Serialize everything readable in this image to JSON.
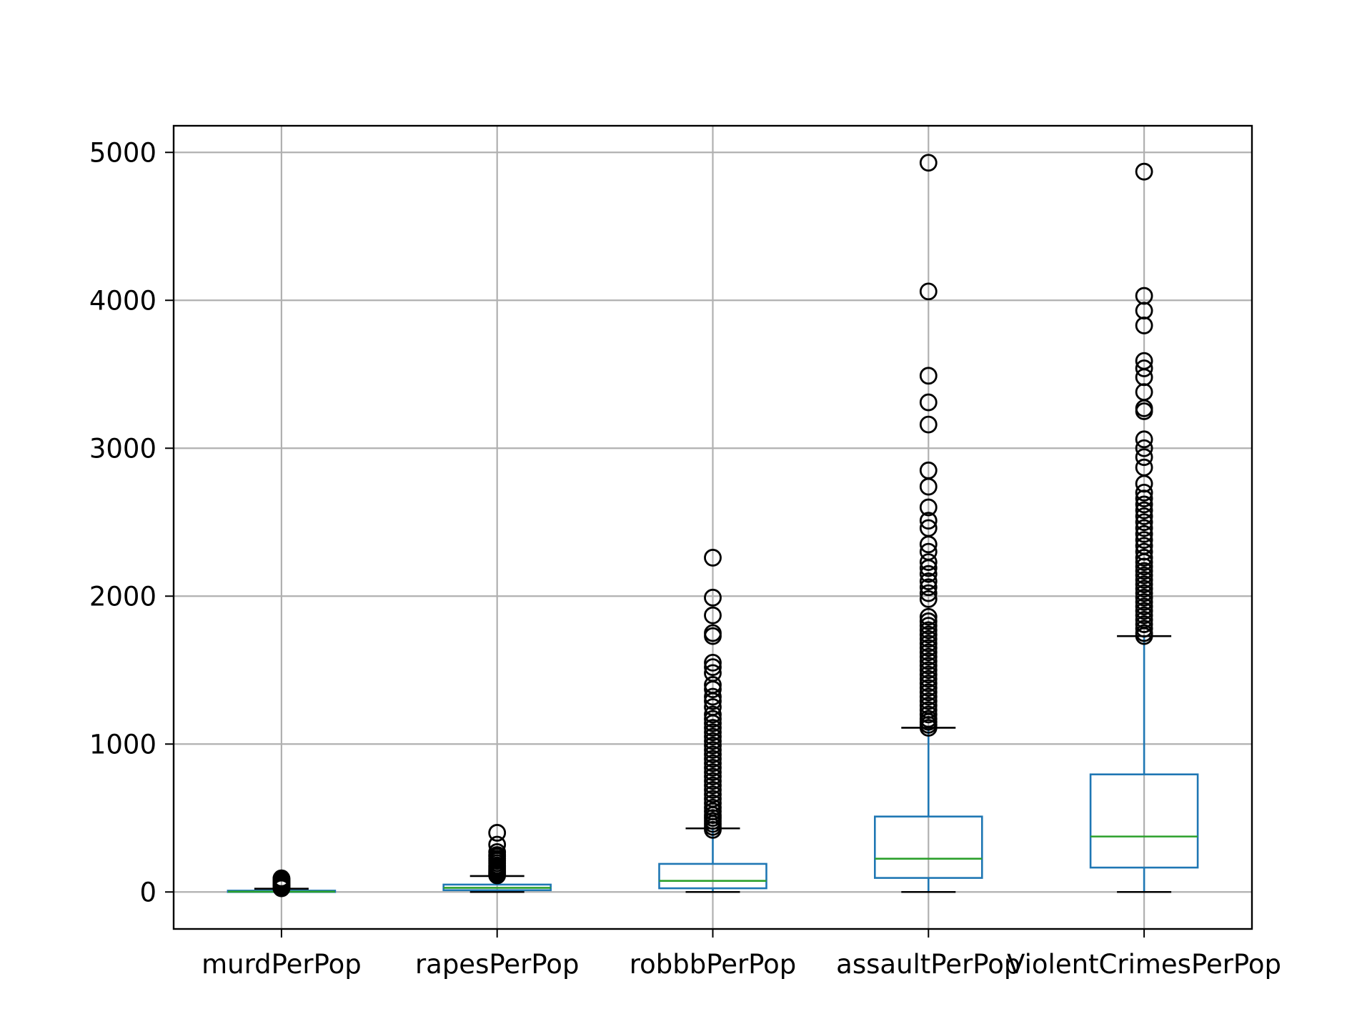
{
  "chart_data": {
    "type": "box",
    "title": "",
    "xlabel": "",
    "ylabel": "",
    "ylim": [
      -250,
      5180
    ],
    "yticks": [
      0,
      1000,
      2000,
      3000,
      4000,
      5000
    ],
    "grid": true,
    "categories": [
      "murdPerPop",
      "rapesPerPop",
      "robbbPerPop",
      "assaultPerPop",
      "ViolentCrimesPerPop"
    ],
    "boxes": [
      {
        "label": "murdPerPop",
        "whisker_low": 0,
        "q1": 0,
        "median": 2,
        "q3": 9,
        "whisker_high": 22,
        "outliers": [
          25,
          28,
          32,
          35,
          38,
          42,
          46,
          50,
          55,
          60,
          65,
          70,
          76,
          82,
          88,
          92
        ]
      },
      {
        "label": "rapesPerPop",
        "whisker_low": 0,
        "q1": 12,
        "median": 28,
        "q3": 50,
        "whisker_high": 108,
        "outliers": [
          112,
          118,
          125,
          132,
          140,
          150,
          160,
          170,
          180,
          195,
          210,
          225,
          240,
          250,
          270,
          320,
          400
        ]
      },
      {
        "label": "robbbPerPop",
        "whisker_low": 0,
        "q1": 25,
        "median": 75,
        "q3": 190,
        "whisker_high": 430,
        "outliers": [
          420,
          440,
          460,
          480,
          500,
          520,
          545,
          570,
          600,
          630,
          660,
          690,
          720,
          750,
          780,
          810,
          840,
          870,
          900,
          930,
          960,
          990,
          1020,
          1050,
          1080,
          1110,
          1140,
          1170,
          1200,
          1250,
          1290,
          1320,
          1370,
          1400,
          1480,
          1520,
          1550,
          1730,
          1750,
          1870,
          1990,
          2260
        ]
      },
      {
        "label": "assaultPerPop",
        "whisker_low": 0,
        "q1": 95,
        "median": 225,
        "q3": 510,
        "whisker_high": 1110,
        "outliers": [
          1110,
          1130,
          1150,
          1170,
          1200,
          1230,
          1260,
          1290,
          1320,
          1350,
          1380,
          1410,
          1440,
          1470,
          1500,
          1530,
          1560,
          1590,
          1620,
          1650,
          1680,
          1710,
          1740,
          1770,
          1800,
          1830,
          1860,
          1980,
          2020,
          2060,
          2100,
          2150,
          2190,
          2230,
          2300,
          2350,
          2460,
          2510,
          2600,
          2740,
          2850,
          3160,
          3310,
          3490,
          4060,
          4930
        ]
      },
      {
        "label": "ViolentCrimesPerPop",
        "whisker_low": 0,
        "q1": 165,
        "median": 375,
        "q3": 795,
        "whisker_high": 1730,
        "outliers": [
          1730,
          1750,
          1780,
          1810,
          1840,
          1870,
          1900,
          1930,
          1960,
          1990,
          2020,
          2050,
          2080,
          2110,
          2140,
          2170,
          2200,
          2230,
          2260,
          2300,
          2340,
          2380,
          2420,
          2460,
          2500,
          2540,
          2580,
          2620,
          2660,
          2700,
          2760,
          2870,
          2940,
          3000,
          3060,
          3250,
          3270,
          3380,
          3480,
          3540,
          3590,
          3830,
          3930,
          4030,
          4870
        ]
      }
    ]
  },
  "colors": {
    "box": "#1f77b4",
    "median": "#2ca02c",
    "cap": "#000000",
    "outlier": "#000000",
    "grid": "#b0b0b0",
    "axes": "#000000"
  }
}
